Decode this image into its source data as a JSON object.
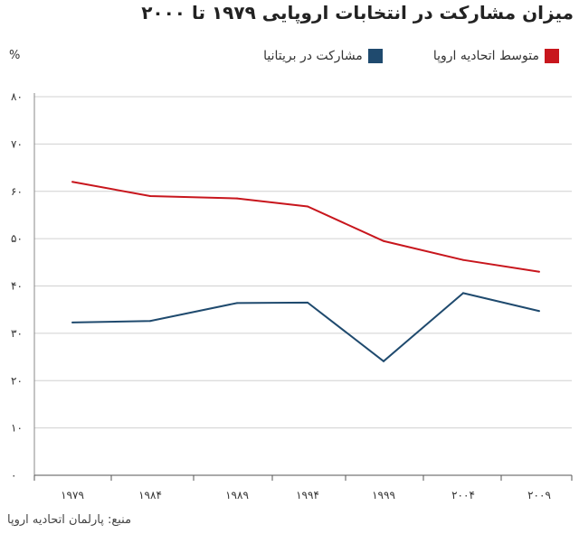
{
  "title": "میزان مشارکت در انتخابات اروپایی ۱۹۷۹ تا ۲۰۰۰",
  "unit_label": "%",
  "source": "منبع: پارلمان اتحادیه اروپا",
  "chart_data": {
    "type": "line",
    "title": "میزان مشارکت در انتخابات اروپایی ۱۹۷۹ تا ۲۰۰۰",
    "ylabel": "%",
    "xlabel": "",
    "ylim": [
      0,
      80
    ],
    "grid": true,
    "legend_position": "top-right",
    "categories": [
      "۱۹۷۹",
      "۱۹۸۴",
      "۱۹۸۹",
      "۱۹۹۴",
      "۱۹۹۹",
      "۲۰۰۴",
      "۲۰۰۹"
    ],
    "y_ticks": [
      0,
      10,
      20,
      30,
      40,
      50,
      60,
      70,
      80
    ],
    "y_tick_labels": [
      "۰",
      "۱۰",
      "۲۰",
      "۳۰",
      "۴۰",
      "۵۰",
      "۶۰",
      "۷۰",
      "۸۰"
    ],
    "series": [
      {
        "name": "متوسط اتحادیه اروپا",
        "color": "#c8161d",
        "values": [
          62,
          59,
          58.5,
          56.8,
          49.5,
          45.5,
          43
        ]
      },
      {
        "name": "مشارکت در بریتانیا",
        "color": "#1f4a6e",
        "values": [
          32.3,
          32.6,
          36.4,
          36.5,
          24.1,
          38.5,
          34.7
        ]
      }
    ]
  }
}
